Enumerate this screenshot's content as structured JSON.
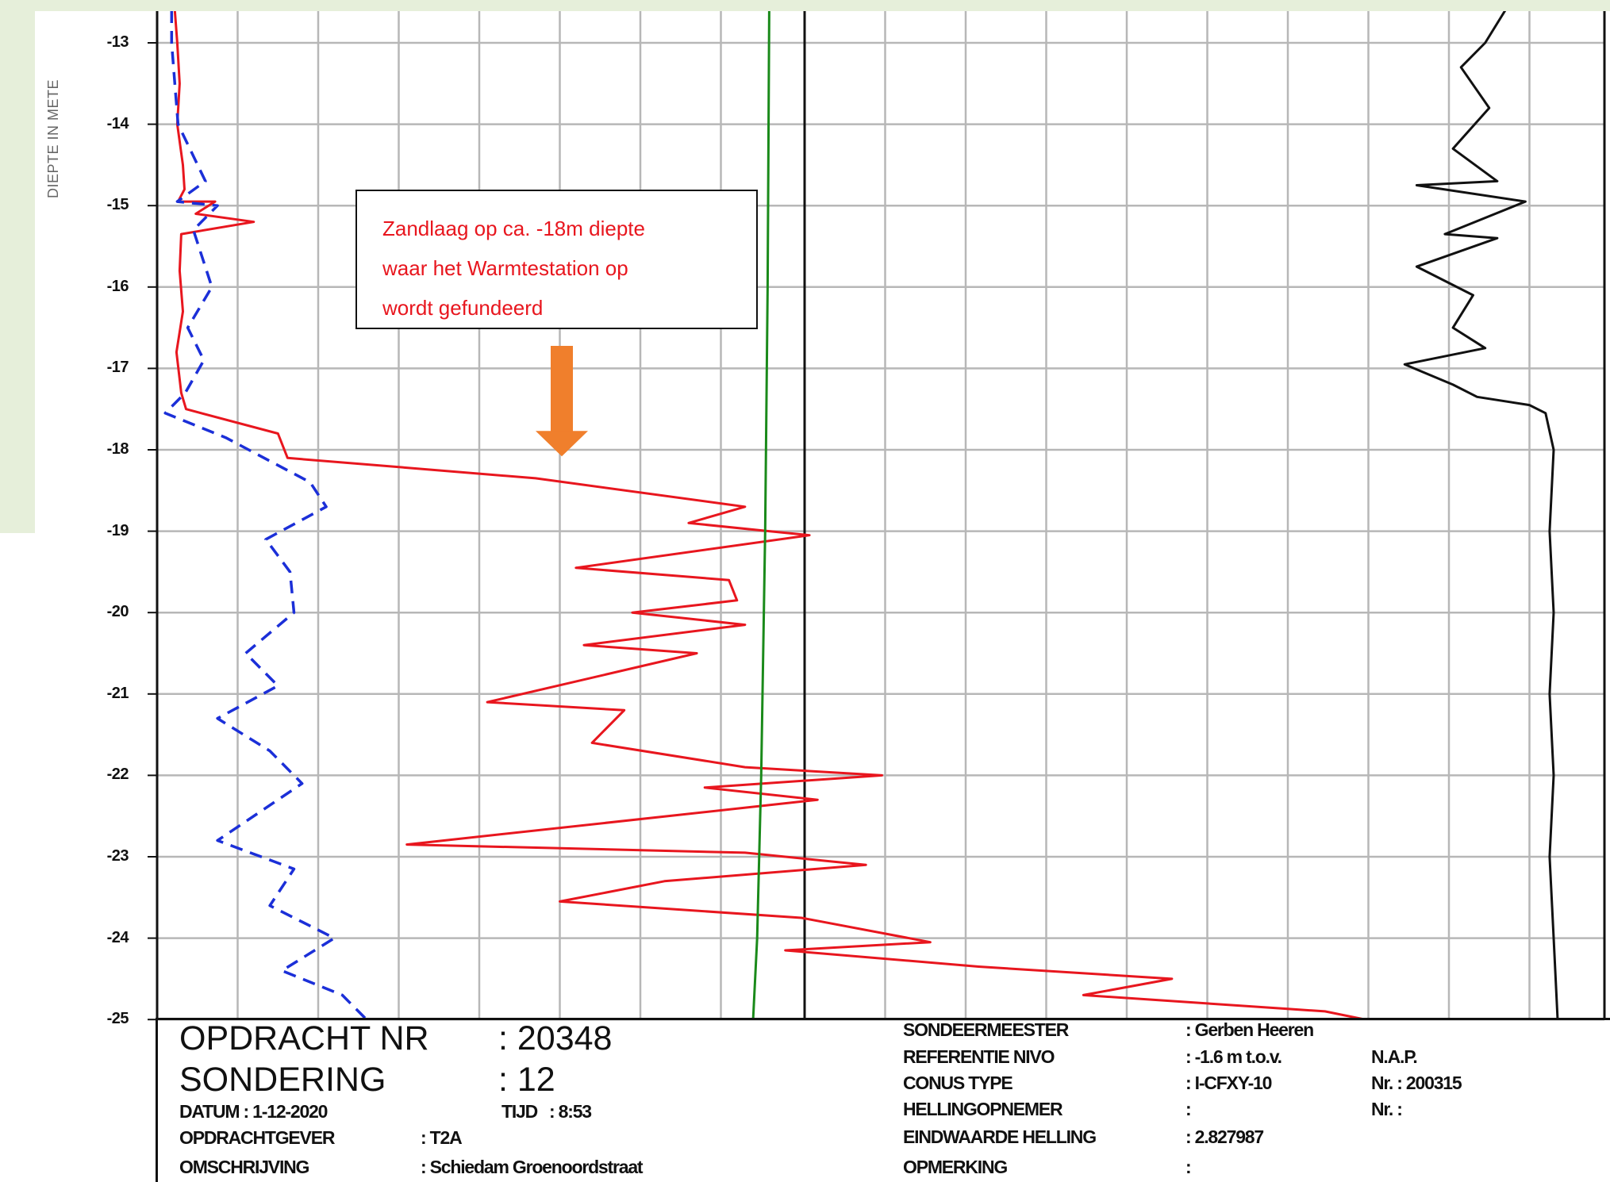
{
  "chart_data": {
    "type": "line",
    "ylabel": "DIEPTE IN METE",
    "ylim": [
      -25,
      -12.6
    ],
    "yticks": [
      -13,
      -14,
      -15,
      -16,
      -17,
      -18,
      -19,
      -20,
      -21,
      -22,
      -23,
      -24,
      -25
    ],
    "grid": true,
    "series": [
      {
        "color": "#e8161e",
        "style": "solid",
        "panel": "left",
        "points": [
          [
            0.22,
            -12.6
          ],
          [
            0.25,
            -13.0
          ],
          [
            0.28,
            -13.5
          ],
          [
            0.25,
            -14.0
          ],
          [
            0.32,
            -14.5
          ],
          [
            0.34,
            -14.8
          ],
          [
            0.26,
            -14.95
          ],
          [
            0.72,
            -14.95
          ],
          [
            0.48,
            -15.1
          ],
          [
            1.2,
            -15.2
          ],
          [
            0.3,
            -15.35
          ],
          [
            0.28,
            -15.8
          ],
          [
            0.32,
            -16.3
          ],
          [
            0.24,
            -16.8
          ],
          [
            0.3,
            -17.3
          ],
          [
            0.36,
            -17.5
          ],
          [
            1.5,
            -17.8
          ],
          [
            1.62,
            -18.1
          ],
          [
            4.7,
            -18.35
          ],
          [
            7.3,
            -18.7
          ],
          [
            6.6,
            -18.9
          ],
          [
            7.6,
            -19.0
          ],
          [
            8.1,
            -19.05
          ],
          [
            5.2,
            -19.45
          ],
          [
            7.1,
            -19.6
          ],
          [
            7.2,
            -19.85
          ],
          [
            5.9,
            -20.0
          ],
          [
            7.3,
            -20.15
          ],
          [
            5.3,
            -20.4
          ],
          [
            6.7,
            -20.5
          ],
          [
            4.1,
            -21.1
          ],
          [
            5.8,
            -21.2
          ],
          [
            5.4,
            -21.6
          ],
          [
            7.3,
            -21.9
          ],
          [
            9.0,
            -22.0
          ],
          [
            6.8,
            -22.15
          ],
          [
            8.2,
            -22.3
          ],
          [
            3.1,
            -22.85
          ],
          [
            7.3,
            -22.95
          ],
          [
            8.8,
            -23.1
          ],
          [
            6.3,
            -23.3
          ],
          [
            5.0,
            -23.55
          ],
          [
            8.0,
            -23.75
          ],
          [
            9.6,
            -24.05
          ],
          [
            7.8,
            -24.15
          ],
          [
            10.2,
            -24.35
          ],
          [
            12.6,
            -24.5
          ],
          [
            11.5,
            -24.7
          ],
          [
            14.5,
            -24.9
          ],
          [
            15.0,
            -25.0
          ]
        ]
      },
      {
        "color": "#1b2fd8",
        "style": "dashed",
        "panel": "left",
        "points": [
          [
            0.18,
            -12.6
          ],
          [
            0.18,
            -13.0
          ],
          [
            0.22,
            -13.5
          ],
          [
            0.26,
            -14.0
          ],
          [
            0.6,
            -14.7
          ],
          [
            0.25,
            -14.95
          ],
          [
            0.75,
            -15.0
          ],
          [
            0.45,
            -15.3
          ],
          [
            0.68,
            -16.0
          ],
          [
            0.38,
            -16.5
          ],
          [
            0.58,
            -16.9
          ],
          [
            0.35,
            -17.3
          ],
          [
            0.1,
            -17.55
          ],
          [
            0.85,
            -17.85
          ],
          [
            1.9,
            -18.4
          ],
          [
            2.1,
            -18.7
          ],
          [
            1.35,
            -19.1
          ],
          [
            1.65,
            -19.5
          ],
          [
            1.7,
            -20.0
          ],
          [
            1.1,
            -20.5
          ],
          [
            1.5,
            -20.9
          ],
          [
            0.75,
            -21.3
          ],
          [
            1.4,
            -21.7
          ],
          [
            1.8,
            -22.1
          ],
          [
            0.75,
            -22.8
          ],
          [
            1.7,
            -23.15
          ],
          [
            1.4,
            -23.6
          ],
          [
            2.2,
            -24.0
          ],
          [
            1.55,
            -24.4
          ],
          [
            2.3,
            -24.7
          ],
          [
            2.6,
            -25.0
          ]
        ]
      },
      {
        "color": "#1a8a1a",
        "style": "solid",
        "panel": "left",
        "points": [
          [
            7.6,
            -12.6
          ],
          [
            7.58,
            -16.0
          ],
          [
            7.55,
            -19.0
          ],
          [
            7.5,
            -22.0
          ],
          [
            7.45,
            -24.0
          ],
          [
            7.4,
            -25.0
          ]
        ]
      },
      {
        "color": "#111111",
        "style": "solid",
        "panel": "right",
        "points": [
          [
            8.7,
            -12.6
          ],
          [
            8.45,
            -13.0
          ],
          [
            8.15,
            -13.3
          ],
          [
            8.5,
            -13.8
          ],
          [
            8.05,
            -14.3
          ],
          [
            8.6,
            -14.7
          ],
          [
            7.6,
            -14.75
          ],
          [
            8.95,
            -14.95
          ],
          [
            7.95,
            -15.35
          ],
          [
            8.6,
            -15.4
          ],
          [
            7.6,
            -15.75
          ],
          [
            8.3,
            -16.1
          ],
          [
            8.05,
            -16.5
          ],
          [
            8.45,
            -16.75
          ],
          [
            7.45,
            -16.95
          ],
          [
            8.05,
            -17.2
          ],
          [
            8.35,
            -17.35
          ],
          [
            9.0,
            -17.45
          ],
          [
            9.2,
            -17.55
          ],
          [
            9.3,
            -18.0
          ],
          [
            9.25,
            -19.0
          ],
          [
            9.3,
            -20.0
          ],
          [
            9.25,
            -21.0
          ],
          [
            9.3,
            -22.0
          ],
          [
            9.25,
            -23.0
          ],
          [
            9.3,
            -24.0
          ],
          [
            9.35,
            -25.0
          ]
        ]
      }
    ],
    "annotation": {
      "lines": [
        "Zandlaag op ca. -18m diepte",
        "waar het Warmtestation op",
        "wordt gefundeerd"
      ],
      "arrow_color": "#f07f2c",
      "arrow_depth": -18.1
    }
  },
  "info_block": {
    "opdracht_label": "OPDRACHT NR",
    "opdracht_value": ": 20348",
    "sondering_label": "SONDERING",
    "sondering_value": ": 12",
    "datum": "DATUM  :  1-12-2020",
    "tijd_label": "TIJD",
    "tijd_value": ":  8:53",
    "opdrachtgever_label": "OPDRACHTGEVER",
    "opdrachtgever_value": ":  T2A",
    "omschrijving_label": "OMSCHRIJVING",
    "omschrijving_value": ":  Schiedam Groenoordstraat",
    "sondeermeester_label": "SONDEERMEESTER",
    "sondeermeester_value": ":  Gerben Heeren",
    "referentie_label": "REFERENTIE NIVO",
    "referentie_value": ":  -1.6     m t.o.v.",
    "referentie_nap": "N.A.P.",
    "conus_label": "CONUS TYPE",
    "conus_value": ":  I-CFXY-10",
    "conus_nr": "Nr. :    200315",
    "helling_label": "HELLINGOPNEMER",
    "helling_value": ":",
    "helling_nr": "Nr. :",
    "eindwaarde_label": "EINDWAARDE HELLING",
    "eindwaarde_value": ":  2.827987",
    "opmerking_label": "OPMERKING",
    "opmerking_value": ":"
  }
}
